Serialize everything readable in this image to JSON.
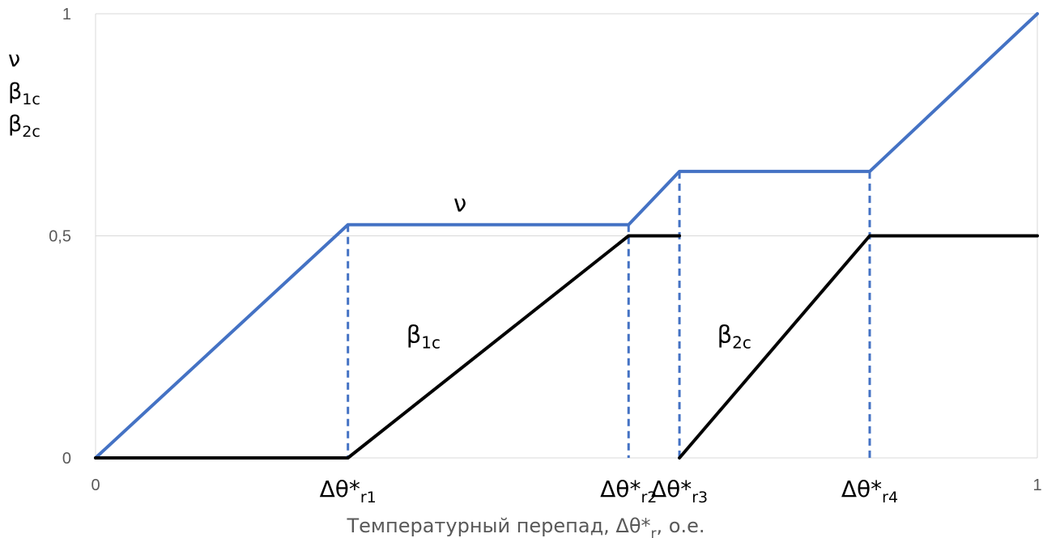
{
  "chart_data": {
    "type": "line",
    "xlabel": {
      "main": "Температурный перепад, Δθ*",
      "sub": "r",
      "suffix": ", о.е."
    },
    "ylabel_lines": [
      {
        "main": "ν",
        "sub": ""
      },
      {
        "main": "β",
        "sub": "1c"
      },
      {
        "main": "β",
        "sub": "2c"
      }
    ],
    "xlim": [
      0,
      1
    ],
    "ylim": [
      0,
      1
    ],
    "x_ticks": [
      {
        "value": 0,
        "label": "0"
      },
      {
        "value": 1,
        "label": "1"
      }
    ],
    "y_ticks": [
      {
        "value": 0,
        "label": "0"
      },
      {
        "value": 0.5,
        "label": "0,5"
      },
      {
        "value": 1,
        "label": "1"
      }
    ],
    "grid": true,
    "series": [
      {
        "id": "nu",
        "label": {
          "main": "ν",
          "sub": ""
        },
        "color": "#4472C4",
        "x": [
          0,
          0.268,
          0.566,
          0.62,
          0.822,
          1
        ],
        "y": [
          0,
          0.525,
          0.525,
          0.645,
          0.645,
          1
        ]
      },
      {
        "id": "beta1c",
        "label": {
          "main": "β",
          "sub": "1c"
        },
        "color": "#000000",
        "x": [
          0,
          0.268,
          0.566,
          0.62
        ],
        "y": [
          0,
          0,
          0.5,
          0.5
        ]
      },
      {
        "id": "beta2c",
        "label": {
          "main": "β",
          "sub": "2c"
        },
        "color": "#000000",
        "x": [
          0.62,
          0.822,
          1
        ],
        "y": [
          0,
          0.5,
          0.5
        ]
      }
    ],
    "markers": [
      {
        "x": 0.268,
        "y": 0.525,
        "label": {
          "main": "Δθ*",
          "sub": "r1"
        }
      },
      {
        "x": 0.566,
        "y": 0.525,
        "label": {
          "main": "Δθ*",
          "sub": "r2"
        }
      },
      {
        "x": 0.62,
        "y": 0.645,
        "label": {
          "main": "Δθ*",
          "sub": "r3"
        }
      },
      {
        "x": 0.822,
        "y": 0.645,
        "label": {
          "main": "Δθ*",
          "sub": "r4"
        }
      }
    ],
    "dash_color": "#4472C4"
  }
}
